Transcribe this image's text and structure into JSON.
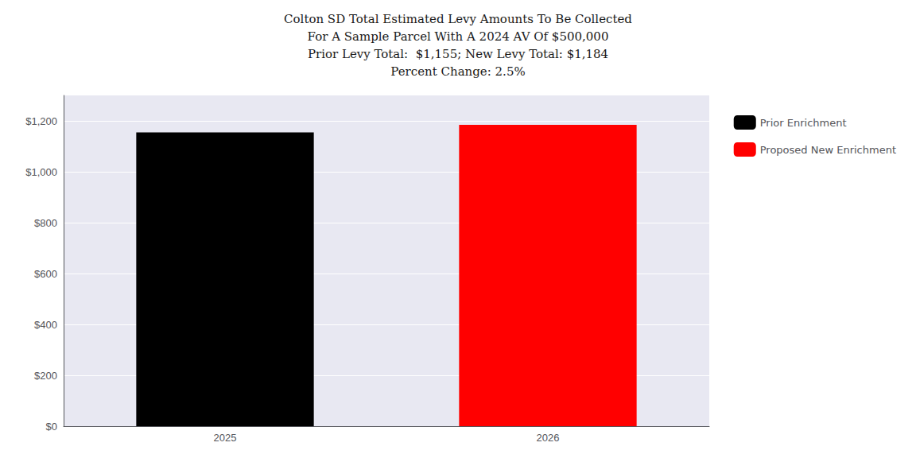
{
  "chart_data": {
    "type": "bar",
    "title": "Colton SD Total Estimated Levy Amounts To Be Collected\nFor A Sample Parcel With A 2024 AV Of $500,000\nPrior Levy Total:  $1,155; New Levy Total: $1,184\nPercent Change: 2.5%",
    "categories": [
      "2025",
      "2026"
    ],
    "series": [
      {
        "name": "Prior Enrichment",
        "color": "#000000",
        "values": [
          1155,
          null
        ]
      },
      {
        "name": "Proposed New Enrichment",
        "color": "#ff0000",
        "values": [
          null,
          1184
        ]
      }
    ],
    "ylim": [
      0,
      1300
    ],
    "yticks": [
      {
        "value": 0,
        "label": "$0"
      },
      {
        "value": 200,
        "label": "$200"
      },
      {
        "value": 400,
        "label": "$400"
      },
      {
        "value": 600,
        "label": "$600"
      },
      {
        "value": 800,
        "label": "$800"
      },
      {
        "value": 1000,
        "label": "$1,000"
      },
      {
        "value": 1200,
        "label": "$1,200"
      }
    ],
    "grid": true,
    "legend": "right"
  }
}
